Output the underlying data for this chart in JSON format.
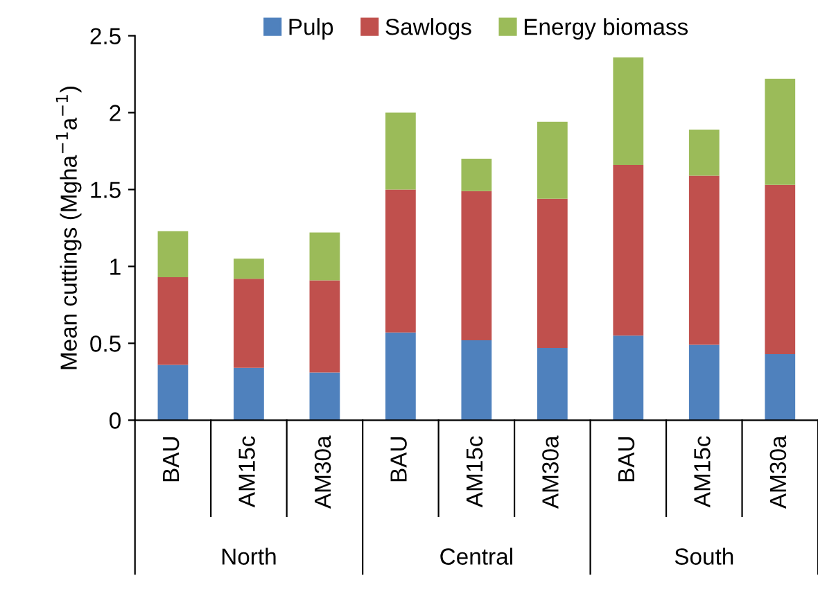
{
  "chart_data": {
    "type": "bar",
    "stacked": true,
    "ylabel": "Mean cuttings (Mgha$^{−1}$a$^{−1}$)",
    "categories": [
      "BAU",
      "AM15c",
      "AM30a",
      "BAU",
      "AM15c",
      "AM30a",
      "BAU",
      "AM15c",
      "AM30a"
    ],
    "annotations": [
      "North",
      "Central",
      "South"
    ],
    "series": [
      {
        "name": "Pulp",
        "color": "#4f81bd",
        "values": [
          0.36,
          0.34,
          0.31,
          0.57,
          0.52,
          0.47,
          0.55,
          0.49,
          0.43
        ]
      },
      {
        "name": "Sawlogs",
        "color": "#c0504d",
        "values": [
          0.57,
          0.58,
          0.6,
          0.93,
          0.97,
          0.97,
          1.11,
          1.1,
          1.1
        ]
      },
      {
        "name": "Energy biomass",
        "color": "#9bbb59",
        "values": [
          0.3,
          0.13,
          0.31,
          0.5,
          0.21,
          0.5,
          0.7,
          0.3,
          0.69
        ]
      }
    ],
    "ylim": [
      0,
      2.5
    ],
    "yticks": [
      0,
      0.5,
      1,
      1.5,
      2,
      2.5
    ],
    "grid": false,
    "legend": "top"
  }
}
